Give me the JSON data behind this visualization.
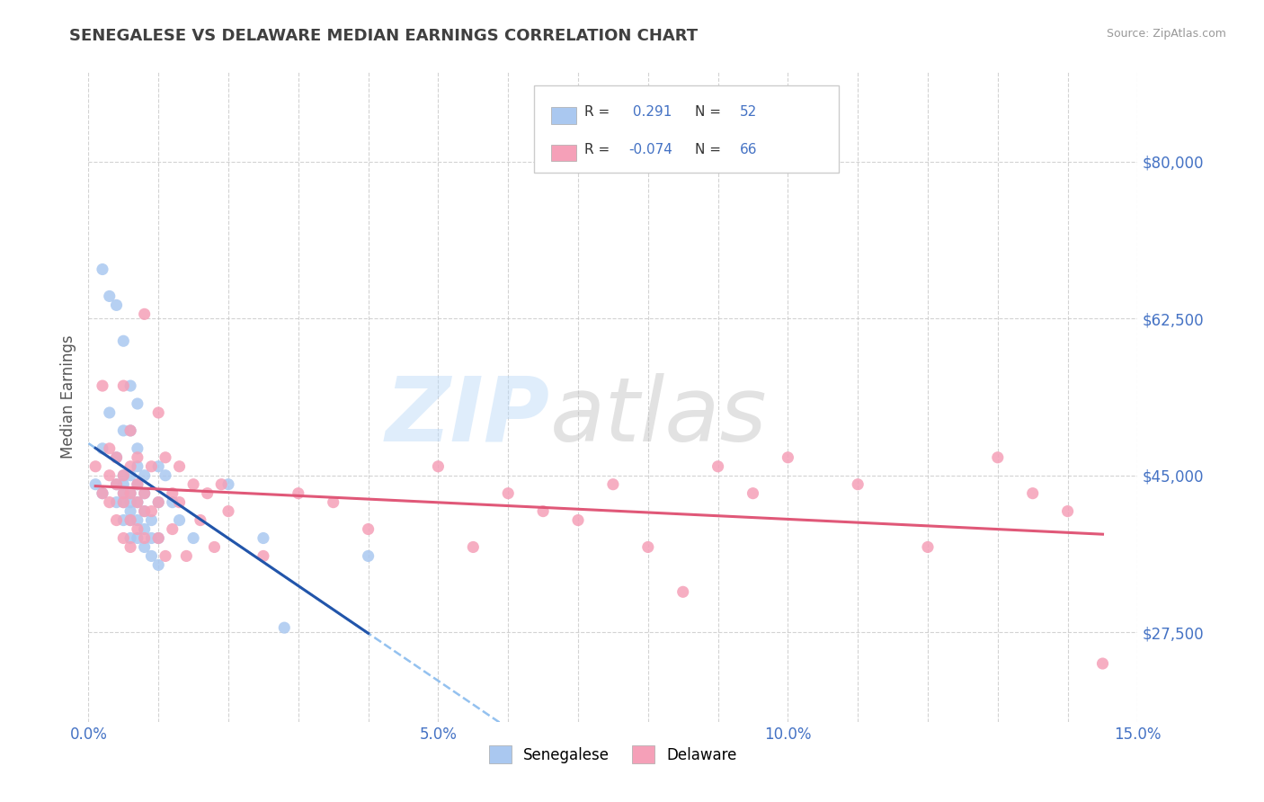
{
  "title": "SENEGALESE VS DELAWARE MEDIAN EARNINGS CORRELATION CHART",
  "source_text": "Source: ZipAtlas.com",
  "ylabel": "Median Earnings",
  "xlim": [
    0.0,
    0.15
  ],
  "ylim": [
    17500,
    90000
  ],
  "yticks": [
    27500,
    45000,
    62500,
    80000
  ],
  "ytick_labels": [
    "$27,500",
    "$45,000",
    "$62,500",
    "$80,000"
  ],
  "xtick_labels": [
    "0.0%",
    "",
    "",
    "",
    "",
    "5.0%",
    "",
    "",
    "",
    "",
    "10.0%",
    "",
    "",
    "",
    "",
    "15.0%"
  ],
  "xticks": [
    0.0,
    0.01,
    0.02,
    0.03,
    0.04,
    0.05,
    0.06,
    0.07,
    0.08,
    0.09,
    0.1,
    0.11,
    0.12,
    0.13,
    0.14,
    0.15
  ],
  "background_color": "#ffffff",
  "grid_color": "#c8c8c8",
  "title_color": "#404040",
  "title_fontsize": 13,
  "tick_label_color": "#4472c4",
  "senegalese_color": "#aac8f0",
  "delaware_color": "#f5a0b8",
  "senegalese_line_color": "#2255aa",
  "delaware_line_color": "#e05878",
  "dashed_line_color": "#88bbee",
  "legend_R1": "0.291",
  "legend_N1": "52",
  "legend_R2": "-0.074",
  "legend_N2": "66",
  "legend_label1": "Senegalese",
  "legend_label2": "Delaware",
  "senegalese_x": [
    0.001,
    0.002,
    0.002,
    0.002,
    0.003,
    0.003,
    0.004,
    0.004,
    0.004,
    0.004,
    0.005,
    0.005,
    0.005,
    0.005,
    0.005,
    0.005,
    0.005,
    0.006,
    0.006,
    0.006,
    0.006,
    0.006,
    0.006,
    0.006,
    0.006,
    0.007,
    0.007,
    0.007,
    0.007,
    0.007,
    0.007,
    0.007,
    0.008,
    0.008,
    0.008,
    0.008,
    0.008,
    0.009,
    0.009,
    0.009,
    0.01,
    0.01,
    0.01,
    0.01,
    0.011,
    0.012,
    0.013,
    0.015,
    0.02,
    0.025,
    0.028,
    0.04
  ],
  "senegalese_y": [
    44000,
    48000,
    68000,
    43000,
    52000,
    65000,
    42000,
    44000,
    47000,
    64000,
    40000,
    42000,
    43000,
    44000,
    45000,
    50000,
    60000,
    38000,
    40000,
    41000,
    42000,
    43000,
    45000,
    50000,
    55000,
    38000,
    40000,
    42000,
    44000,
    46000,
    48000,
    53000,
    37000,
    39000,
    41000,
    43000,
    45000,
    36000,
    38000,
    40000,
    35000,
    38000,
    42000,
    46000,
    45000,
    42000,
    40000,
    38000,
    44000,
    38000,
    28000,
    36000
  ],
  "delaware_x": [
    0.001,
    0.002,
    0.002,
    0.003,
    0.003,
    0.003,
    0.004,
    0.004,
    0.004,
    0.005,
    0.005,
    0.005,
    0.005,
    0.005,
    0.006,
    0.006,
    0.006,
    0.006,
    0.006,
    0.007,
    0.007,
    0.007,
    0.007,
    0.008,
    0.008,
    0.008,
    0.008,
    0.009,
    0.009,
    0.01,
    0.01,
    0.01,
    0.011,
    0.011,
    0.012,
    0.012,
    0.013,
    0.013,
    0.014,
    0.015,
    0.016,
    0.017,
    0.018,
    0.019,
    0.02,
    0.025,
    0.03,
    0.035,
    0.04,
    0.05,
    0.055,
    0.06,
    0.065,
    0.07,
    0.075,
    0.08,
    0.085,
    0.09,
    0.095,
    0.1,
    0.11,
    0.12,
    0.13,
    0.135,
    0.14,
    0.145
  ],
  "delaware_y": [
    46000,
    55000,
    43000,
    48000,
    45000,
    42000,
    47000,
    44000,
    40000,
    55000,
    43000,
    45000,
    42000,
    38000,
    50000,
    46000,
    43000,
    40000,
    37000,
    44000,
    42000,
    47000,
    39000,
    63000,
    41000,
    43000,
    38000,
    46000,
    41000,
    52000,
    42000,
    38000,
    47000,
    36000,
    43000,
    39000,
    42000,
    46000,
    36000,
    44000,
    40000,
    43000,
    37000,
    44000,
    41000,
    36000,
    43000,
    42000,
    39000,
    46000,
    37000,
    43000,
    41000,
    40000,
    44000,
    37000,
    32000,
    46000,
    43000,
    47000,
    44000,
    37000,
    47000,
    43000,
    41000,
    24000
  ]
}
